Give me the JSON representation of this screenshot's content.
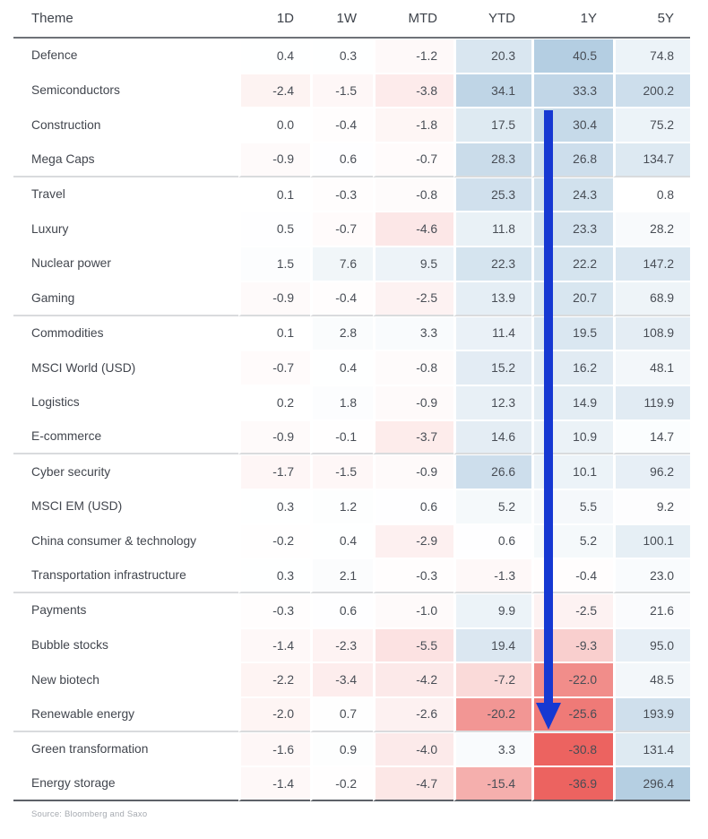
{
  "chart_data": {
    "type": "heatmap",
    "columns": [
      "Theme",
      "1D",
      "1W",
      "MTD",
      "YTD",
      "1Y",
      "5Y"
    ],
    "groups": [
      {
        "rows": [
          {
            "theme": "Defence",
            "values": [
              "0.4",
              "0.3",
              "-1.2",
              "20.3",
              "40.5",
              "74.8"
            ]
          },
          {
            "theme": "Semiconductors",
            "values": [
              "-2.4",
              "-1.5",
              "-3.8",
              "34.1",
              "33.3",
              "200.2"
            ]
          },
          {
            "theme": "Construction",
            "values": [
              "0.0",
              "-0.4",
              "-1.8",
              "17.5",
              "30.4",
              "75.2"
            ]
          },
          {
            "theme": "Mega Caps",
            "values": [
              "-0.9",
              "0.6",
              "-0.7",
              "28.3",
              "26.8",
              "134.7"
            ]
          }
        ]
      },
      {
        "rows": [
          {
            "theme": "Travel",
            "values": [
              "0.1",
              "-0.3",
              "-0.8",
              "25.3",
              "24.3",
              "0.8"
            ]
          },
          {
            "theme": "Luxury",
            "values": [
              "0.5",
              "-0.7",
              "-4.6",
              "11.8",
              "23.3",
              "28.2"
            ]
          },
          {
            "theme": "Nuclear power",
            "values": [
              "1.5",
              "7.6",
              "9.5",
              "22.3",
              "22.2",
              "147.2"
            ]
          },
          {
            "theme": "Gaming",
            "values": [
              "-0.9",
              "-0.4",
              "-2.5",
              "13.9",
              "20.7",
              "68.9"
            ]
          }
        ]
      },
      {
        "rows": [
          {
            "theme": "Commodities",
            "values": [
              "0.1",
              "2.8",
              "3.3",
              "11.4",
              "19.5",
              "108.9"
            ]
          },
          {
            "theme": "MSCI World (USD)",
            "values": [
              "-0.7",
              "0.4",
              "-0.8",
              "15.2",
              "16.2",
              "48.1"
            ]
          },
          {
            "theme": "Logistics",
            "values": [
              "0.2",
              "1.8",
              "-0.9",
              "12.3",
              "14.9",
              "119.9"
            ]
          },
          {
            "theme": "E-commerce",
            "values": [
              "-0.9",
              "-0.1",
              "-3.7",
              "14.6",
              "10.9",
              "14.7"
            ]
          }
        ]
      },
      {
        "rows": [
          {
            "theme": "Cyber security",
            "values": [
              "-1.7",
              "-1.5",
              "-0.9",
              "26.6",
              "10.1",
              "96.2"
            ]
          },
          {
            "theme": "MSCI EM (USD)",
            "values": [
              "0.3",
              "1.2",
              "0.6",
              "5.2",
              "5.5",
              "9.2"
            ]
          },
          {
            "theme": "China consumer & technology",
            "values": [
              "-0.2",
              "0.4",
              "-2.9",
              "0.6",
              "5.2",
              "100.1"
            ]
          },
          {
            "theme": "Transportation infrastructure",
            "values": [
              "0.3",
              "2.1",
              "-0.3",
              "-1.3",
              "-0.4",
              "23.0"
            ]
          }
        ]
      },
      {
        "rows": [
          {
            "theme": "Payments",
            "values": [
              "-0.3",
              "0.6",
              "-1.0",
              "9.9",
              "-2.5",
              "21.6"
            ]
          },
          {
            "theme": "Bubble stocks",
            "values": [
              "-1.4",
              "-2.3",
              "-5.5",
              "19.4",
              "-9.3",
              "95.0"
            ]
          },
          {
            "theme": "New biotech",
            "values": [
              "-2.2",
              "-3.4",
              "-4.2",
              "-7.2",
              "-22.0",
              "48.5"
            ]
          },
          {
            "theme": "Renewable energy",
            "values": [
              "-2.0",
              "0.7",
              "-2.6",
              "-20.2",
              "-25.6",
              "193.9"
            ]
          }
        ]
      },
      {
        "rows": [
          {
            "theme": "Green transformation",
            "values": [
              "-1.6",
              "0.9",
              "-4.0",
              "3.3",
              "-30.8",
              "131.4"
            ]
          },
          {
            "theme": "Energy storage",
            "values": [
              "-1.4",
              "-0.2",
              "-4.7",
              "-15.4",
              "-36.9",
              "296.4"
            ]
          }
        ]
      }
    ],
    "color_scale": {
      "positive_color": "#b4cee2",
      "negative_color": "#ec6360",
      "neutral_color": "#ffffff",
      "positive_cap": 40,
      "positive_cap_5y": 300,
      "negative_cap": 30
    },
    "annotation_arrow": {
      "shape": "down-arrow",
      "color": "#1638d2",
      "over_column": "1Y"
    }
  },
  "footer": {
    "source": "Source: Bloomberg and Saxo"
  }
}
